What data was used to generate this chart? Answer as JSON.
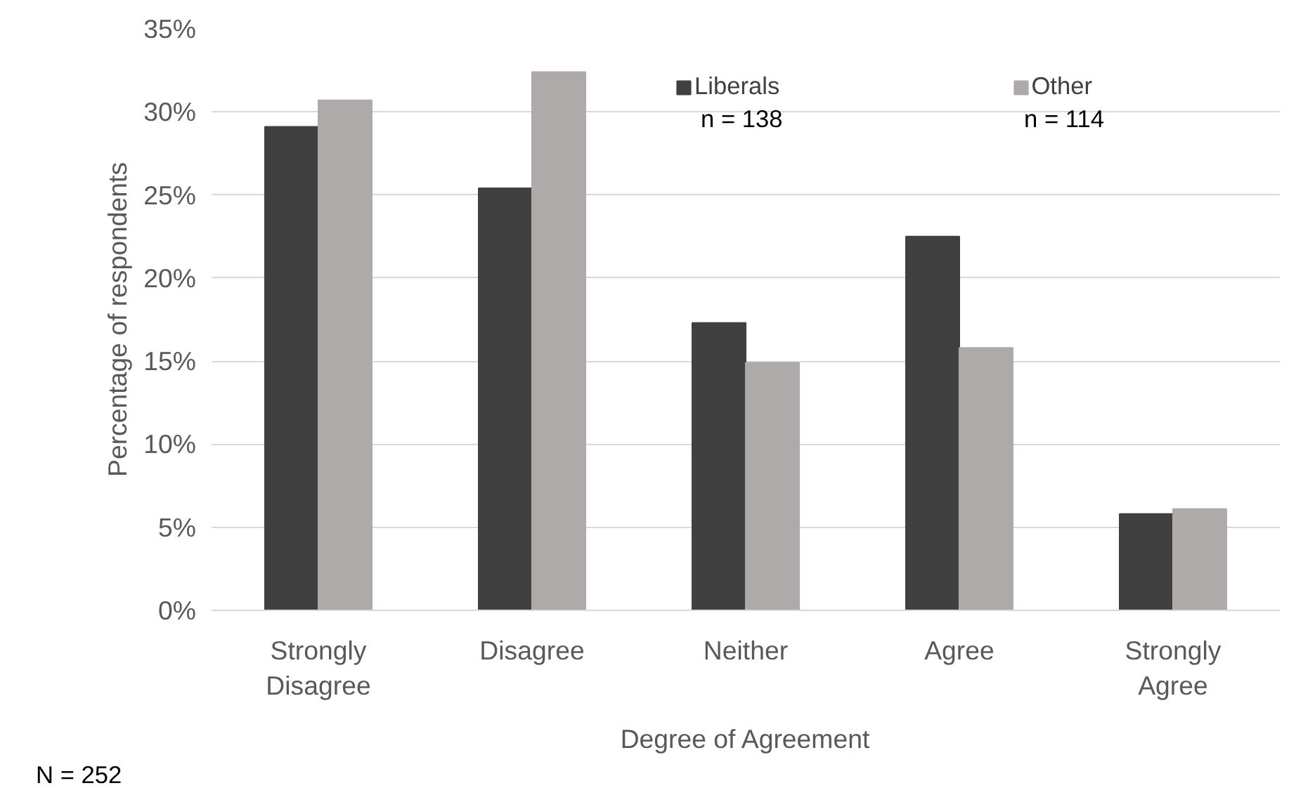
{
  "chart_data": {
    "type": "bar",
    "xlabel": "Degree of Agreement",
    "ylabel": "Percentage of respondents",
    "categories": [
      "Strongly Disagree",
      "Disagree",
      "Neither",
      "Agree",
      "Strongly Agree"
    ],
    "series": [
      {
        "name": "Liberals",
        "color": "#404040",
        "values": [
          29.1,
          25.4,
          17.3,
          22.5,
          5.8
        ]
      },
      {
        "name": "Other",
        "color": "#aeaaaa",
        "values": [
          30.7,
          32.4,
          14.9,
          15.8,
          6.1
        ]
      }
    ],
    "ylim": [
      0,
      35
    ],
    "yticks": [
      {
        "value": 0,
        "label": "0%"
      },
      {
        "value": 5,
        "label": "5%"
      },
      {
        "value": 10,
        "label": "10%"
      },
      {
        "value": 15,
        "label": "15%"
      },
      {
        "value": 20,
        "label": "20%"
      },
      {
        "value": 25,
        "label": "25%"
      },
      {
        "value": 30,
        "label": "30%"
      },
      {
        "value": 35,
        "label": "35%"
      }
    ],
    "grid": "y",
    "legend": "top",
    "annotations": [
      "n = 138",
      "n = 114",
      "N = 252"
    ]
  }
}
